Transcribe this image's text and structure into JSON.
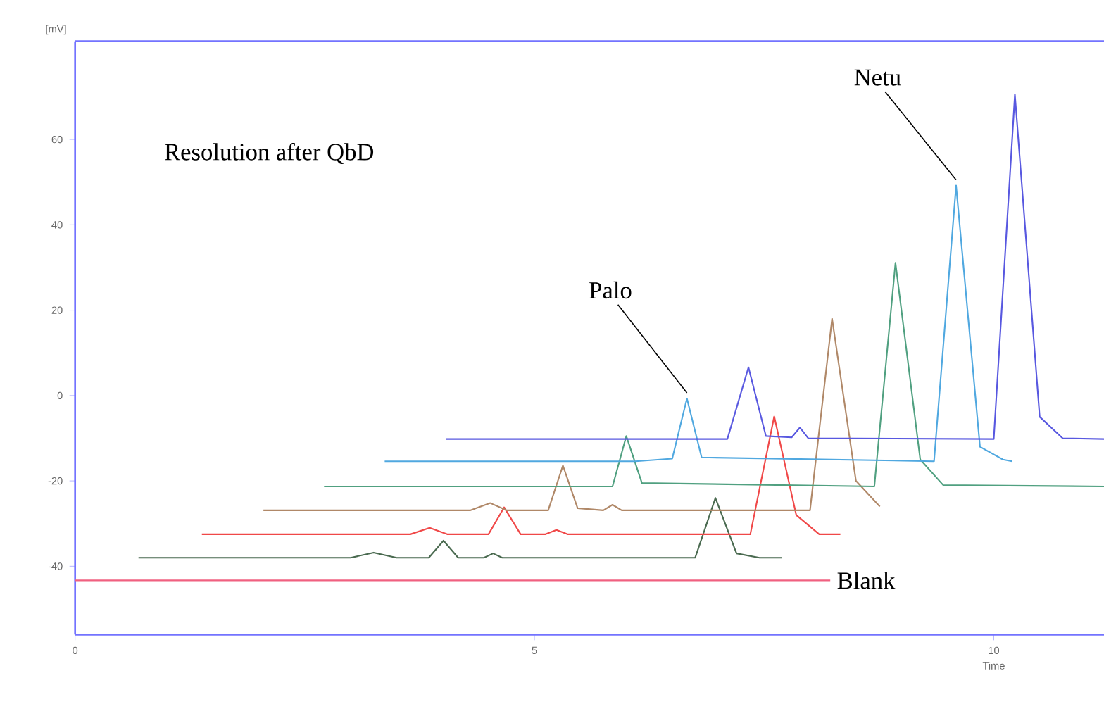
{
  "chart_data": {
    "type": "line",
    "xlabel": "Time",
    "ylabel": "[mV]",
    "xlim": [
      0,
      11.2
    ],
    "ylim": [
      -56,
      83
    ],
    "xticks": [
      0,
      5,
      10
    ],
    "yticks": [
      -40,
      -20,
      0,
      20,
      40,
      60
    ],
    "grid": false,
    "legend": false,
    "marker": "none",
    "line_style": "solid",
    "annotations": [
      "Resolution after QbD",
      {
        "text": "Palo",
        "x": 6.66,
        "y": -0.7
      },
      {
        "text": "Netu",
        "x": 9.59,
        "y": 49.2
      }
    ],
    "series": [
      {
        "name": "Blank",
        "color": "#f06080",
        "x": [
          0,
          8.22
        ],
        "values": [
          -43.3,
          -43.3
        ]
      },
      {
        "color": "#4a6a50",
        "x": [
          0.69,
          3.0,
          3.25,
          3.5,
          3.85,
          4.01,
          4.17,
          4.45,
          4.55,
          4.65,
          6.75,
          6.97,
          7.2,
          7.45,
          7.69
        ],
        "values": [
          -38,
          -38,
          -36.8,
          -38,
          -38,
          -34,
          -38,
          -38,
          -37,
          -38,
          -38,
          -24,
          -37,
          -38,
          -38
        ]
      },
      {
        "color": "#f04848",
        "x": [
          1.38,
          3.65,
          3.86,
          4.05,
          4.5,
          4.67,
          4.85,
          5.12,
          5.24,
          5.36,
          7.35,
          7.61,
          7.85,
          8.1,
          8.33
        ],
        "values": [
          -32.5,
          -32.5,
          -31,
          -32.5,
          -32.5,
          -26.2,
          -32.5,
          -32.5,
          -31.5,
          -32.5,
          -32.5,
          -4.9,
          -28,
          -32.5,
          -32.5
        ]
      },
      {
        "color": "#b08868",
        "x": [
          2.05,
          4.3,
          4.52,
          4.7,
          5.15,
          5.31,
          5.47,
          5.75,
          5.85,
          5.95,
          8.0,
          8.24,
          8.5,
          8.76
        ],
        "values": [
          -26.9,
          -26.9,
          -25.2,
          -26.9,
          -26.9,
          -16.4,
          -26.4,
          -26.9,
          -25.6,
          -26.9,
          -26.9,
          18,
          -20,
          -26
        ]
      },
      {
        "color": "#50a080",
        "x": [
          2.71,
          5.85,
          6.0,
          6.17,
          8.7,
          8.93,
          9.2,
          9.45,
          11.2
        ],
        "values": [
          -21.3,
          -21.3,
          -9.5,
          -20.5,
          -21.3,
          31.1,
          -15,
          -21,
          -21.3
        ]
      },
      {
        "color": "#50a8e0",
        "x": [
          3.37,
          6.1,
          6.5,
          6.66,
          6.82,
          9.35,
          9.59,
          9.85,
          10.1,
          10.2
        ],
        "values": [
          -15.4,
          -15.4,
          -14.8,
          -0.7,
          -14.5,
          -15.4,
          49.2,
          -12,
          -15,
          -15.4
        ]
      },
      {
        "color": "#5858e0",
        "x": [
          4.04,
          7.1,
          7.33,
          7.52,
          7.8,
          7.89,
          7.98,
          10.0,
          10.23,
          10.5,
          10.75,
          11.2
        ],
        "values": [
          -10.2,
          -10.2,
          6.6,
          -9.5,
          -9.8,
          -7.5,
          -10,
          -10.2,
          70.5,
          -5,
          -10,
          -10.2
        ]
      }
    ]
  }
}
